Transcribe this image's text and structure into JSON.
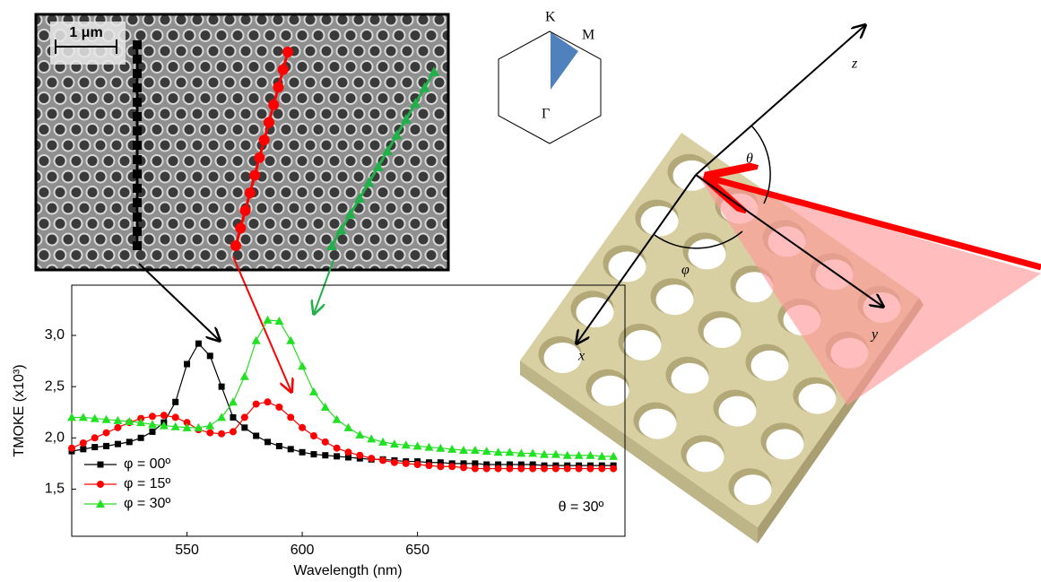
{
  "chart_data": {
    "type": "line",
    "x_label": "Wavelength (nm)",
    "y_label": "TMOKE (x10³)",
    "annotation": "θ = 30º",
    "x": [
      500,
      505,
      510,
      515,
      520,
      525,
      530,
      535,
      540,
      545,
      550,
      555,
      560,
      565,
      570,
      575,
      580,
      585,
      590,
      595,
      600,
      605,
      610,
      615,
      620,
      625,
      630,
      635,
      640,
      645,
      650,
      655,
      660,
      665,
      670,
      675,
      680,
      685,
      690,
      695,
      700,
      705,
      710,
      715,
      720,
      725,
      730,
      735
    ],
    "series": [
      {
        "name": "φ = 00º",
        "color": "#000000",
        "marker": "square",
        "values": [
          1.87,
          1.89,
          1.91,
          1.92,
          1.94,
          1.96,
          2.0,
          2.06,
          2.15,
          2.35,
          2.72,
          2.92,
          2.8,
          2.5,
          2.2,
          2.1,
          2.02,
          1.96,
          1.92,
          1.89,
          1.86,
          1.84,
          1.83,
          1.82,
          1.81,
          1.8,
          1.79,
          1.79,
          1.78,
          1.77,
          1.77,
          1.76,
          1.76,
          1.75,
          1.75,
          1.75,
          1.74,
          1.74,
          1.74,
          1.74,
          1.74,
          1.73,
          1.73,
          1.73,
          1.73,
          1.73,
          1.73,
          1.73
        ]
      },
      {
        "name": "φ = 15º",
        "color": "#ff0000",
        "marker": "circle",
        "values": [
          1.9,
          1.95,
          2.0,
          2.05,
          2.1,
          2.15,
          2.19,
          2.21,
          2.22,
          2.2,
          2.15,
          2.08,
          2.05,
          2.04,
          2.06,
          2.2,
          2.33,
          2.35,
          2.3,
          2.2,
          2.1,
          2.02,
          1.96,
          1.9,
          1.86,
          1.83,
          1.8,
          1.78,
          1.76,
          1.75,
          1.74,
          1.73,
          1.72,
          1.72,
          1.71,
          1.7,
          1.7,
          1.7,
          1.7,
          1.7,
          1.7,
          1.7,
          1.7,
          1.7,
          1.7,
          1.7,
          1.7,
          1.7
        ]
      },
      {
        "name": "φ = 30º",
        "color": "#22e022",
        "marker": "triangle",
        "values": [
          2.2,
          2.2,
          2.19,
          2.18,
          2.17,
          2.16,
          2.15,
          2.13,
          2.12,
          2.11,
          2.1,
          2.1,
          2.12,
          2.2,
          2.35,
          2.6,
          2.95,
          3.15,
          3.14,
          2.95,
          2.7,
          2.45,
          2.3,
          2.18,
          2.1,
          2.03,
          1.99,
          1.96,
          1.94,
          1.93,
          1.92,
          1.91,
          1.9,
          1.89,
          1.88,
          1.88,
          1.87,
          1.86,
          1.86,
          1.85,
          1.85,
          1.84,
          1.84,
          1.83,
          1.83,
          1.83,
          1.82,
          1.82
        ]
      }
    ],
    "xlim": [
      500,
      740
    ],
    "xticks": [
      550,
      600,
      650
    ],
    "ylim": [
      1.04,
      3.49
    ],
    "yticks": [
      {
        "value": 1.5,
        "label": "1,5"
      },
      {
        "value": 2,
        "label": "2,0"
      },
      {
        "value": 2.5,
        "label": "2,5"
      },
      {
        "value": 3,
        "label": "3,0"
      }
    ],
    "legend": "lower left",
    "grid": false
  },
  "sem_image": {
    "scale_label": "1 μm"
  },
  "brillouin_zone": {
    "k": "K",
    "m": "M",
    "gamma": "Γ"
  },
  "diagram": {
    "z": "z",
    "theta": "θ",
    "phi": "φ",
    "x": "x",
    "y": "y"
  }
}
